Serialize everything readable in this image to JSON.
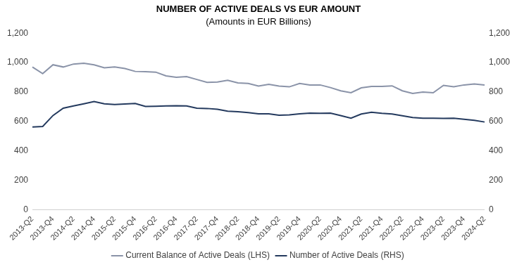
{
  "chart_data": {
    "type": "line",
    "title": "NUMBER OF ACTIVE DEALS VS EUR AMOUNT",
    "subtitle": "(Amounts in EUR Billions)",
    "categories": [
      "2013-Q2",
      null,
      "2013-Q4",
      null,
      "2014-Q2",
      null,
      "2014-Q4",
      null,
      "2015-Q2",
      null,
      "2015-Q4",
      null,
      "2016-Q2",
      null,
      "2016-Q4",
      null,
      "2017-Q2",
      null,
      "2017-Q4",
      null,
      "2018-Q2",
      null,
      "2018-Q4",
      null,
      "2019-Q2",
      null,
      "2019-Q4",
      null,
      "2020-Q2",
      null,
      "2020-Q4",
      null,
      "2021-Q2",
      null,
      "2021-Q4",
      null,
      "2022-Q2",
      null,
      "2022-Q4",
      null,
      "2023-Q2",
      null,
      "2023-Q4",
      null,
      "2024-Q2"
    ],
    "series": [
      {
        "name": "Current Balance of Active Deals (LHS)",
        "color": "#8a93a8",
        "axis": "y",
        "values": [
          970,
          925,
          985,
          970,
          990,
          995,
          985,
          965,
          970,
          960,
          940,
          938,
          935,
          910,
          900,
          905,
          885,
          865,
          868,
          880,
          862,
          858,
          840,
          852,
          840,
          835,
          858,
          848,
          848,
          830,
          808,
          795,
          828,
          838,
          838,
          842,
          808,
          790,
          800,
          795,
          845,
          835,
          848,
          855,
          848
        ]
      },
      {
        "name": "Number of Active Deals (RHS)",
        "color": "#243a5e",
        "axis": "y2",
        "values": [
          562,
          566,
          640,
          690,
          705,
          720,
          735,
          720,
          715,
          718,
          722,
          702,
          703,
          705,
          707,
          705,
          690,
          688,
          683,
          670,
          666,
          660,
          652,
          652,
          642,
          645,
          652,
          656,
          655,
          656,
          640,
          622,
          650,
          662,
          655,
          650,
          638,
          626,
          622,
          622,
          620,
          622,
          615,
          607,
          596
        ]
      }
    ],
    "ylim": [
      0,
      1200
    ],
    "yticks": [
      0,
      200,
      400,
      600,
      800,
      1000,
      1200
    ],
    "y2lim": [
      0,
      1200
    ],
    "y2ticks": [
      0,
      200,
      400,
      600,
      800,
      1000,
      1200
    ],
    "grid": false,
    "legend": "bottom"
  }
}
